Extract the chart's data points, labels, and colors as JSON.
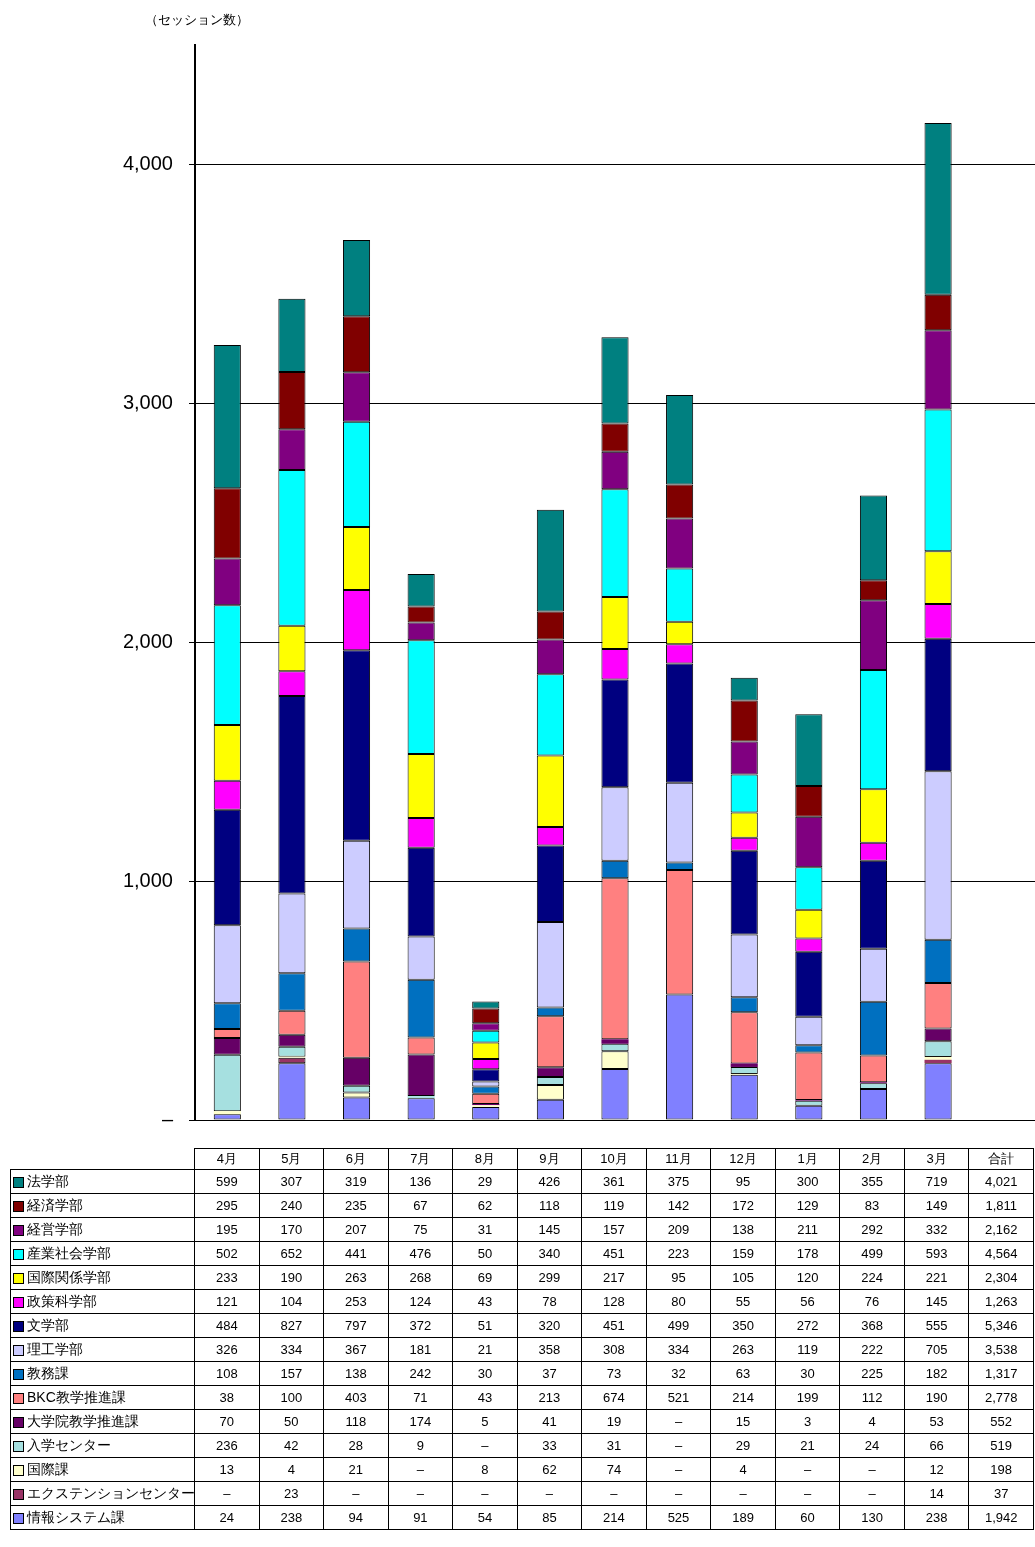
{
  "chart_data": {
    "type": "bar",
    "stacked": true,
    "ylabel": "（セッション数）",
    "categories": [
      "4月",
      "5月",
      "6月",
      "7月",
      "8月",
      "9月",
      "10月",
      "11月",
      "12月",
      "1月",
      "2月",
      "3月",
      "合計"
    ],
    "ylim": [
      0,
      4500
    ],
    "yticks": [
      {
        "value": 0,
        "label": "–"
      },
      {
        "value": 1000,
        "label": "1,000"
      },
      {
        "value": 2000,
        "label": "2,000"
      },
      {
        "value": 3000,
        "label": "3,000"
      },
      {
        "value": 4000,
        "label": "4,000"
      }
    ],
    "grid": "y",
    "legend": "bottom",
    "series": [
      {
        "name": "情報システム課",
        "color": "#8080ff",
        "values": [
          24,
          238,
          94,
          91,
          54,
          85,
          214,
          525,
          189,
          60,
          130,
          238,
          null
        ],
        "value_labels": [
          "24",
          "238",
          "94",
          "91",
          "54",
          "85",
          "214",
          "525",
          "189",
          "60",
          "130",
          "238",
          "1,942"
        ]
      },
      {
        "name": "エクステンションセンター",
        "color": "#993366",
        "values": [
          null,
          23,
          null,
          null,
          null,
          null,
          null,
          null,
          null,
          null,
          null,
          14,
          null
        ],
        "value_labels": [
          "–",
          "23",
          "–",
          "–",
          "–",
          "–",
          "–",
          "–",
          "–",
          "–",
          "–",
          "14",
          "37"
        ]
      },
      {
        "name": "国際課",
        "color": "#ffffcc",
        "values": [
          13,
          4,
          21,
          null,
          8,
          62,
          74,
          null,
          4,
          null,
          null,
          12,
          null
        ],
        "value_labels": [
          "13",
          "4",
          "21",
          "–",
          "8",
          "62",
          "74",
          "–",
          "4",
          "–",
          "–",
          "12",
          "198"
        ]
      },
      {
        "name": "入学センター",
        "color": "#a6e0e0",
        "values": [
          236,
          42,
          28,
          9,
          null,
          33,
          31,
          null,
          29,
          21,
          24,
          66,
          null
        ],
        "value_labels": [
          "236",
          "42",
          "28",
          "9",
          "–",
          "33",
          "31",
          "–",
          "29",
          "21",
          "24",
          "66",
          "519"
        ]
      },
      {
        "name": "大学院教学推進課",
        "color": "#660066",
        "values": [
          70,
          50,
          118,
          174,
          5,
          41,
          19,
          null,
          15,
          3,
          4,
          53,
          null
        ],
        "value_labels": [
          "70",
          "50",
          "118",
          "174",
          "5",
          "41",
          "19",
          "–",
          "15",
          "3",
          "4",
          "53",
          "552"
        ]
      },
      {
        "name": "BKC教学推進課",
        "color": "#ff8080",
        "values": [
          38,
          100,
          403,
          71,
          43,
          213,
          674,
          521,
          214,
          199,
          112,
          190,
          null
        ],
        "value_labels": [
          "38",
          "100",
          "403",
          "71",
          "43",
          "213",
          "674",
          "521",
          "214",
          "199",
          "112",
          "190",
          "2,778"
        ]
      },
      {
        "name": "教務課",
        "color": "#0070c0",
        "values": [
          108,
          157,
          138,
          242,
          30,
          37,
          73,
          32,
          63,
          30,
          225,
          182,
          null
        ],
        "value_labels": [
          "108",
          "157",
          "138",
          "242",
          "30",
          "37",
          "73",
          "32",
          "63",
          "30",
          "225",
          "182",
          "1,317"
        ]
      },
      {
        "name": "理工学部",
        "color": "#ccccff",
        "values": [
          326,
          334,
          367,
          181,
          21,
          358,
          308,
          334,
          263,
          119,
          222,
          705,
          null
        ],
        "value_labels": [
          "326",
          "334",
          "367",
          "181",
          "21",
          "358",
          "308",
          "334",
          "263",
          "119",
          "222",
          "705",
          "3,538"
        ]
      },
      {
        "name": "文学部",
        "color": "#000080",
        "values": [
          484,
          827,
          797,
          372,
          51,
          320,
          451,
          499,
          350,
          272,
          368,
          555,
          null
        ],
        "value_labels": [
          "484",
          "827",
          "797",
          "372",
          "51",
          "320",
          "451",
          "499",
          "350",
          "272",
          "368",
          "555",
          "5,346"
        ]
      },
      {
        "name": "政策科学部",
        "color": "#ff00ff",
        "values": [
          121,
          104,
          253,
          124,
          43,
          78,
          128,
          80,
          55,
          56,
          76,
          145,
          null
        ],
        "value_labels": [
          "121",
          "104",
          "253",
          "124",
          "43",
          "78",
          "128",
          "80",
          "55",
          "56",
          "76",
          "145",
          "1,263"
        ]
      },
      {
        "name": "国際関係学部",
        "color": "#ffff00",
        "values": [
          233,
          190,
          263,
          268,
          69,
          299,
          217,
          95,
          105,
          120,
          224,
          221,
          null
        ],
        "value_labels": [
          "233",
          "190",
          "263",
          "268",
          "69",
          "299",
          "217",
          "95",
          "105",
          "120",
          "224",
          "221",
          "2,304"
        ]
      },
      {
        "name": "産業社会学部",
        "color": "#00ffff",
        "values": [
          502,
          652,
          441,
          476,
          50,
          340,
          451,
          223,
          159,
          178,
          499,
          593,
          null
        ],
        "value_labels": [
          "502",
          "652",
          "441",
          "476",
          "50",
          "340",
          "451",
          "223",
          "159",
          "178",
          "499",
          "593",
          "4,564"
        ]
      },
      {
        "name": "経営学部",
        "color": "#800080",
        "values": [
          195,
          170,
          207,
          75,
          31,
          145,
          157,
          209,
          138,
          211,
          292,
          332,
          null
        ],
        "value_labels": [
          "195",
          "170",
          "207",
          "75",
          "31",
          "145",
          "157",
          "209",
          "138",
          "211",
          "292",
          "332",
          "2,162"
        ]
      },
      {
        "name": "経済学部",
        "color": "#800000",
        "values": [
          295,
          240,
          235,
          67,
          62,
          118,
          119,
          142,
          172,
          129,
          83,
          149,
          null
        ],
        "value_labels": [
          "295",
          "240",
          "235",
          "67",
          "62",
          "118",
          "119",
          "142",
          "172",
          "129",
          "83",
          "149",
          "1,811"
        ]
      },
      {
        "name": "法学部",
        "color": "#008080",
        "values": [
          599,
          307,
          319,
          136,
          29,
          426,
          361,
          375,
          95,
          300,
          355,
          719,
          null
        ],
        "value_labels": [
          "599",
          "307",
          "319",
          "136",
          "29",
          "426",
          "361",
          "375",
          "95",
          "300",
          "355",
          "719",
          "4,021"
        ]
      }
    ]
  }
}
